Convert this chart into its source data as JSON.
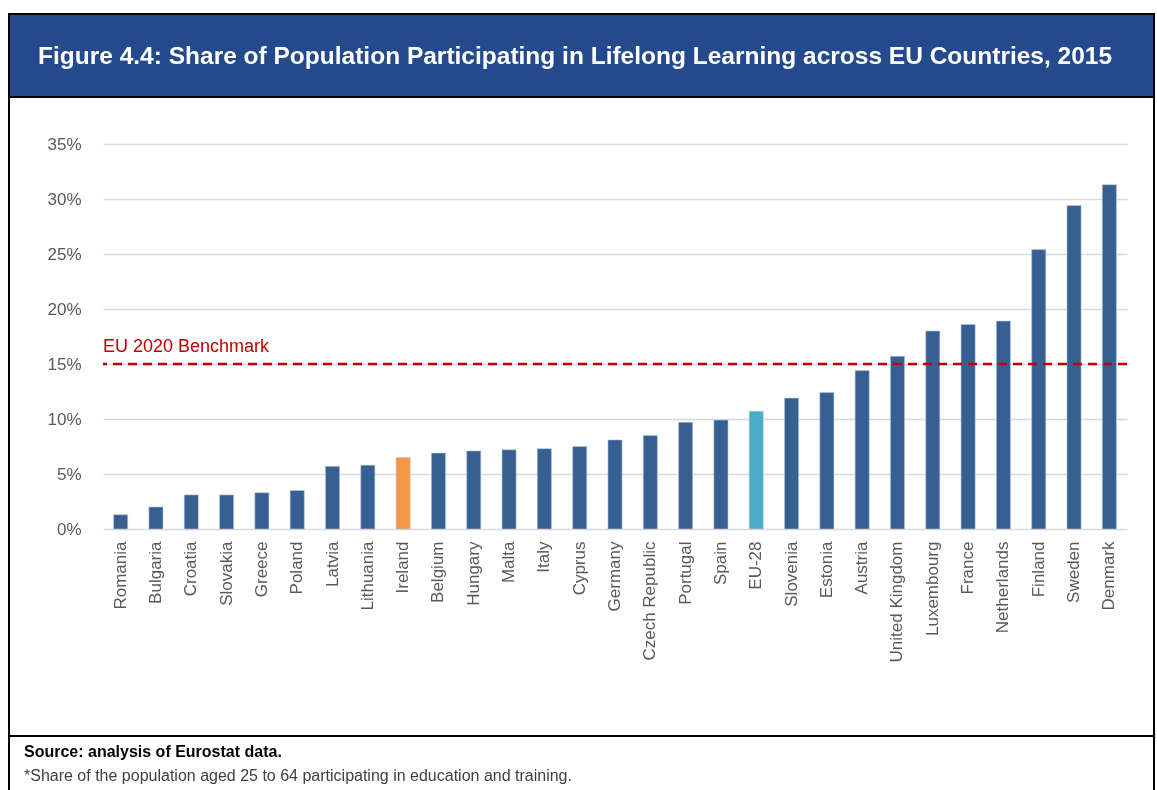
{
  "chart_data": {
    "type": "bar",
    "title": "Figure 4.4: Share of Population Participating in Lifelong Learning across EU Countries, 2015",
    "categories": [
      "Romania",
      "Bulgaria",
      "Croatia",
      "Slovakia",
      "Greece",
      "Poland",
      "Latvia",
      "Lithuania",
      "Ireland",
      "Belgium",
      "Hungary",
      "Malta",
      "Italy",
      "Cyprus",
      "Germany",
      "Czech Republic",
      "Portugal",
      "Spain",
      "EU-28",
      "Slovenia",
      "Estonia",
      "Austria",
      "United Kingdom",
      "Luxembourg",
      "France",
      "Netherlands",
      "Finland",
      "Sweden",
      "Denmark"
    ],
    "values": [
      1.3,
      2.0,
      3.1,
      3.1,
      3.3,
      3.5,
      5.7,
      5.8,
      6.5,
      6.9,
      7.1,
      7.2,
      7.3,
      7.5,
      8.1,
      8.5,
      9.7,
      9.9,
      10.7,
      11.9,
      12.4,
      14.4,
      15.7,
      18.0,
      18.6,
      18.9,
      25.4,
      29.4,
      31.3
    ],
    "colors": [
      "#376092",
      "#376092",
      "#376092",
      "#376092",
      "#376092",
      "#376092",
      "#376092",
      "#376092",
      "#f79646",
      "#376092",
      "#376092",
      "#376092",
      "#376092",
      "#376092",
      "#376092",
      "#376092",
      "#376092",
      "#376092",
      "#4bacc6",
      "#376092",
      "#376092",
      "#376092",
      "#376092",
      "#376092",
      "#376092",
      "#376092",
      "#376092",
      "#376092",
      "#376092"
    ],
    "ylim": [
      0,
      35
    ],
    "yticks": [
      {
        "value": 0,
        "label": "0%"
      },
      {
        "value": 5,
        "label": "5%"
      },
      {
        "value": 10,
        "label": "10%"
      },
      {
        "value": 15,
        "label": "15%"
      },
      {
        "value": 20,
        "label": "20%"
      },
      {
        "value": 25,
        "label": "25%"
      },
      {
        "value": 30,
        "label": "30%"
      },
      {
        "value": 35,
        "label": "35%"
      }
    ],
    "grid": "y",
    "ref_lines": [
      {
        "axis": "y",
        "value": 15,
        "label": "EU 2020 Benchmark",
        "color": "#c00000",
        "line_style": "dashed"
      }
    ],
    "annotations": [
      "Source: analysis of Eurostat data.",
      "*Share of the population aged 25 to 64 participating in education and training."
    ]
  }
}
